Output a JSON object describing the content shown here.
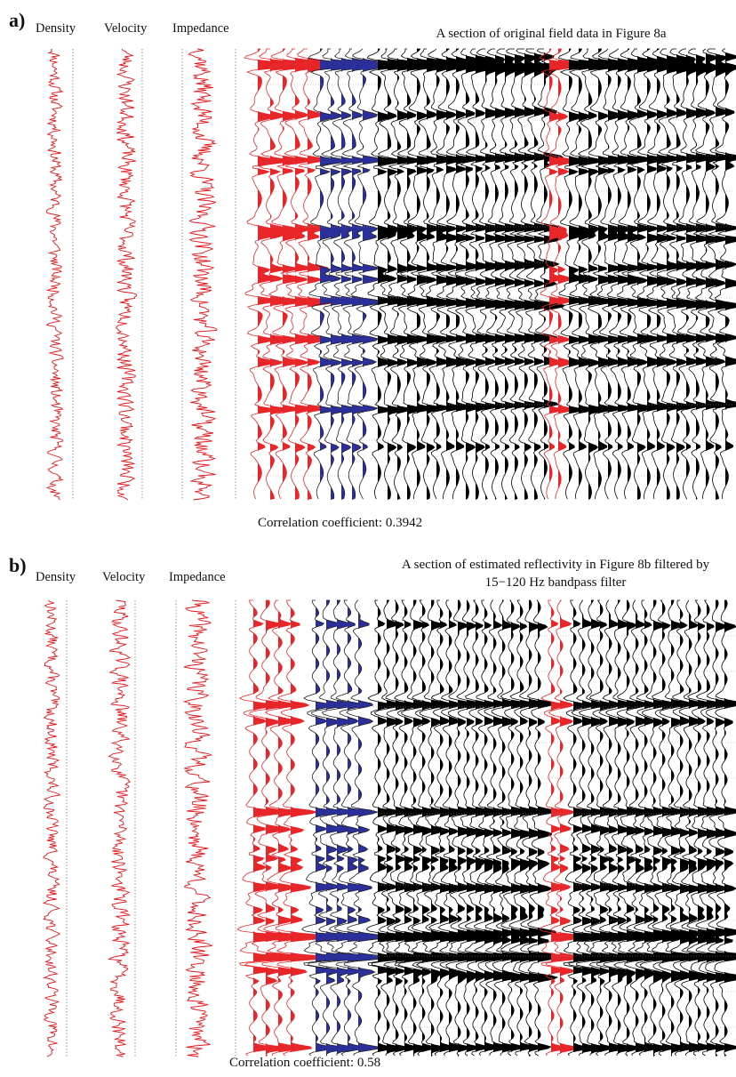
{
  "panel_a": {
    "label": "a)",
    "tracks": [
      "Density",
      "Velocity",
      "Impedance"
    ],
    "section_title": "A section of original field data in Figure 8a",
    "correlation": "Correlation coefficient: 0.3942"
  },
  "panel_b": {
    "label": "b)",
    "tracks": [
      "Density",
      "Velocity",
      "Impedance"
    ],
    "section_title_line1": "A section of estimated reflectivity in Figure 8b filtered by",
    "section_title_line2": "15−120 Hz bandpass filter",
    "correlation": "Correlation coefficient: 0.58"
  },
  "colors": {
    "log_curve": "#e0161b",
    "synthetic_red": "#e8262a",
    "synthetic_blue": "#2b2f9a",
    "seismic_black": "#000000",
    "dotted_guide": "#777777"
  },
  "icons": {
    "density_track": "log-curve-icon",
    "seismic_section": "wiggle-trace-icon"
  }
}
